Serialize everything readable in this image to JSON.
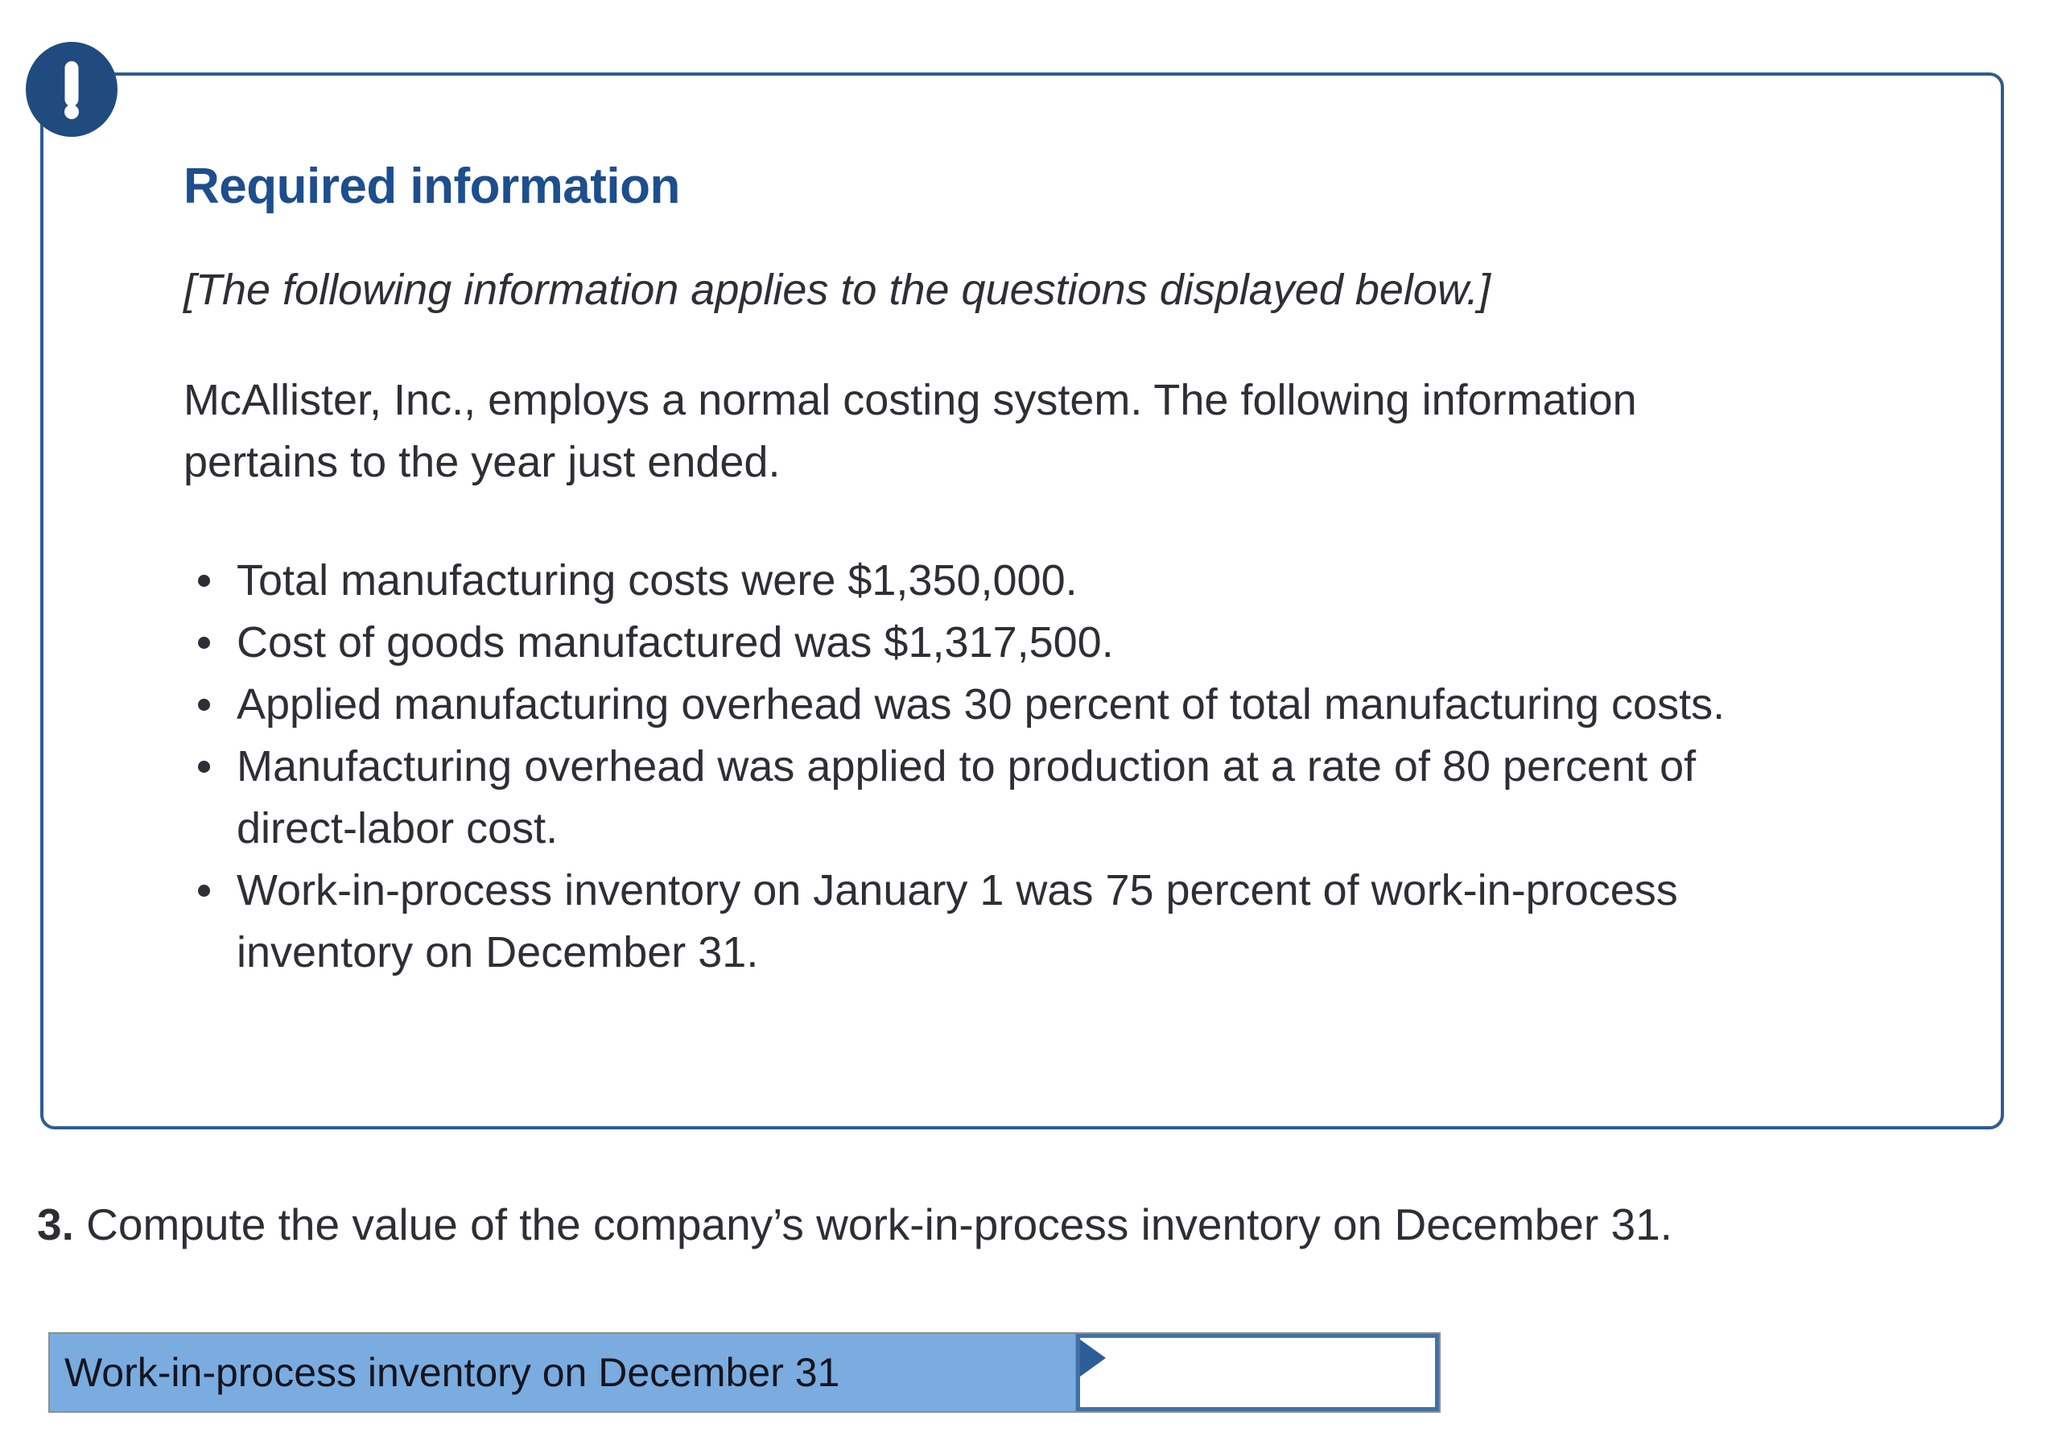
{
  "alert_box": {
    "icon": "exclamation-icon",
    "heading": "Required information",
    "applies_note": "[The following information applies to the questions displayed below.]",
    "paragraph": "McAllister, Inc., employs a normal costing system. The following information pertains to the year just ended.",
    "bullets": [
      "Total manufacturing costs were $1,350,000.",
      "Cost of goods manufactured was $1,317,500.",
      "Applied manufacturing overhead was 30 percent of total manufacturing costs.",
      "Manufacturing overhead was applied to production at a rate of 80 percent of direct-labor cost.",
      "Work-in-process inventory on January 1 was 75 percent of work-in-process inventory on December 31."
    ]
  },
  "question": {
    "number": "3.",
    "text": "Compute the value of the company’s work-in-process inventory on December 31."
  },
  "answer_table": {
    "row_label": "Work-in-process inventory on December 31",
    "input_value": ""
  },
  "colors": {
    "accent_blue": "#1d4e8d",
    "box_border_blue": "#2e5c94",
    "badge_navy": "#1f4b7e",
    "body_text": "#2e2e36",
    "cell_blue": "#7aace0",
    "cell_text": "#15151f",
    "input_border_blue": "#4170a6",
    "flag_navy": "#2b5d99",
    "table_border_gray": "#8e8e86",
    "page_bg": "#ffffff"
  }
}
